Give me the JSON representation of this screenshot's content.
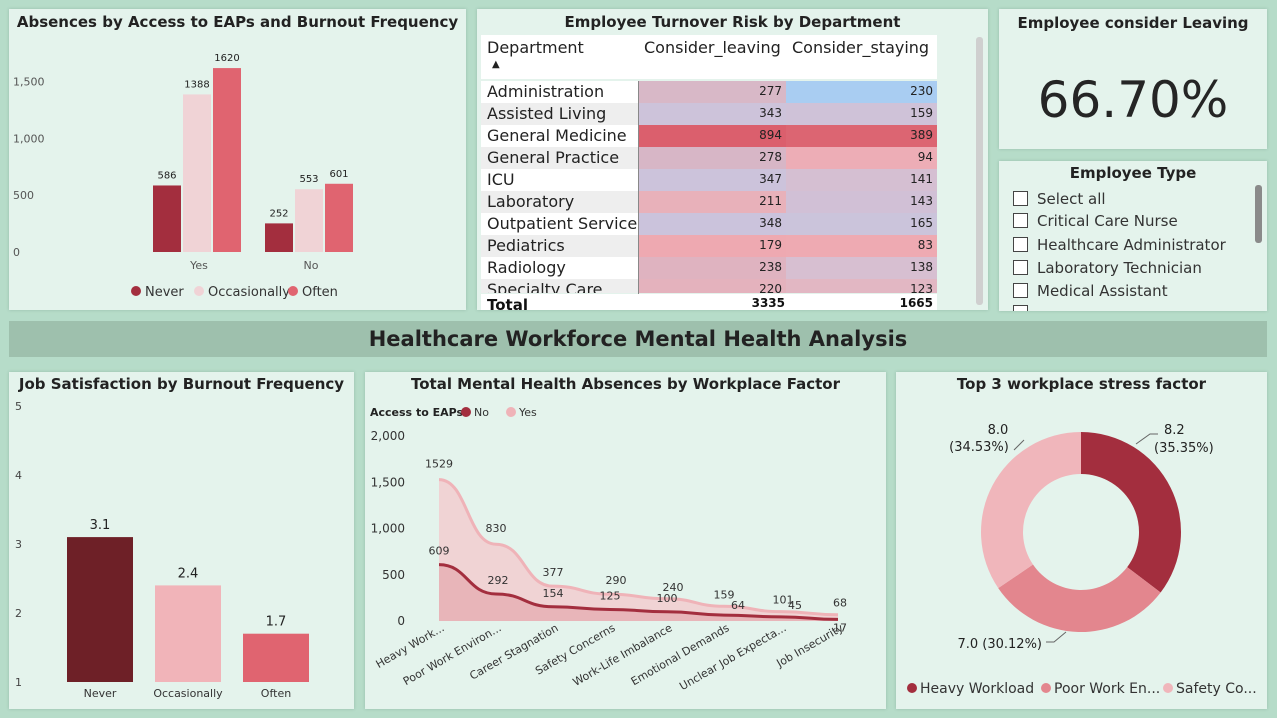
{
  "banner_title": "Healthcare Workforce Mental Health Analysis",
  "panel1": {
    "title": "Absences by Access to EAPs and Burnout Frequency",
    "y_ticks": [
      "0",
      "500",
      "1,000",
      "1,500"
    ],
    "legend": [
      "Never",
      "Occasionally",
      "Often"
    ]
  },
  "panel2": {
    "title": "Employee Turnover Risk by Department",
    "col_department": "Department",
    "col_leaving": "Consider_leaving",
    "col_staying": "Consider_staying",
    "rows": [
      {
        "dept": "Administration",
        "leaving": "277",
        "staying": "230"
      },
      {
        "dept": "Assisted Living",
        "leaving": "343",
        "staying": "159"
      },
      {
        "dept": "General Medicine",
        "leaving": "894",
        "staying": "389"
      },
      {
        "dept": "General Practice",
        "leaving": "278",
        "staying": "94"
      },
      {
        "dept": "ICU",
        "leaving": "347",
        "staying": "141"
      },
      {
        "dept": "Laboratory",
        "leaving": "211",
        "staying": "143"
      },
      {
        "dept": "Outpatient Services",
        "leaving": "348",
        "staying": "165"
      },
      {
        "dept": "Pediatrics",
        "leaving": "179",
        "staying": "83"
      },
      {
        "dept": "Radiology",
        "leaving": "238",
        "staying": "138"
      },
      {
        "dept": "Specialty Care",
        "leaving": "220",
        "staying": "123"
      }
    ],
    "total_label": "Total",
    "total_leaving": "3335",
    "total_staying": "1665"
  },
  "kpi": {
    "title": "Employee consider Leaving",
    "value": "66.70%"
  },
  "slicer": {
    "title": "Employee Type",
    "items": [
      "Select all",
      "Critical Care Nurse",
      "Healthcare Administrator",
      "Laboratory Technician",
      "Medical Assistant"
    ]
  },
  "panel4": {
    "title": "Job Satisfaction by Burnout Frequency",
    "y_ticks": [
      "1",
      "2",
      "3",
      "4",
      "5"
    ]
  },
  "panel5": {
    "title": "Total Mental Health Absences by Workplace Factor",
    "legend_title": "Access to EAPs",
    "legend": [
      "No",
      "Yes"
    ],
    "y_ticks": [
      "0",
      "500",
      "1,000",
      "1,500",
      "2,000"
    ]
  },
  "panel6": {
    "title": "Top 3 workplace stress factor",
    "legend": [
      "Heavy Workload",
      "Poor Work En...",
      "Safety Co..."
    ]
  },
  "chart_data": [
    {
      "type": "bar",
      "title": "Absences by Access to EAPs and Burnout Frequency",
      "categories": [
        "Yes",
        "No"
      ],
      "series": [
        {
          "name": "Never",
          "values": [
            586,
            252
          ],
          "color": "#a32e3e"
        },
        {
          "name": "Occasionally",
          "values": [
            1388,
            553
          ],
          "color": "#f0d3d6"
        },
        {
          "name": "Often",
          "values": [
            1620,
            601
          ],
          "color": "#e06470"
        }
      ],
      "ylim": [
        0,
        1700
      ],
      "legend": "bottom"
    },
    {
      "type": "bar",
      "title": "Job Satisfaction by Burnout Frequency",
      "categories": [
        "Never",
        "Occasionally",
        "Often"
      ],
      "values": [
        3.1,
        2.4,
        1.7
      ],
      "labels": [
        "3.1",
        "2.4",
        "1.7"
      ],
      "colors": [
        "#6e2027",
        "#f1b4b9",
        "#e06470"
      ],
      "ylim": [
        1,
        5
      ]
    },
    {
      "type": "area",
      "title": "Total Mental Health Absences by Workplace Factor",
      "categories": [
        "Heavy Work...",
        "Poor Work Environ...",
        "Career Stagnation",
        "Safety Concerns",
        "Work-Life Imbalance",
        "Emotional Demands",
        "Unclear Job Expecta...",
        "Job Insecurity"
      ],
      "series": [
        {
          "name": "No",
          "values": [
            609,
            292,
            154,
            125,
            100,
            64,
            45,
            17
          ],
          "color": "#a32e3e"
        },
        {
          "name": "Yes",
          "values": [
            1529,
            830,
            377,
            290,
            240,
            159,
            101,
            68
          ],
          "color": "#efb3b8"
        }
      ],
      "ylim": [
        0,
        2000
      ],
      "legend": "top-left"
    },
    {
      "type": "pie",
      "title": "Top 3 workplace stress factor",
      "slices": [
        {
          "name": "Heavy Workload",
          "value": 8.2,
          "label": "8.2",
          "pct": "(35.35%)",
          "color": "#a32e3e"
        },
        {
          "name": "Poor Work En...",
          "value": 7.0,
          "label": "7.0 (30.12%)",
          "pct": "",
          "color": "#e3868e"
        },
        {
          "name": "Safety Co...",
          "value": 8.0,
          "label": "8.0",
          "pct": "(34.53%)",
          "color": "#f0b6bb"
        }
      ]
    }
  ]
}
